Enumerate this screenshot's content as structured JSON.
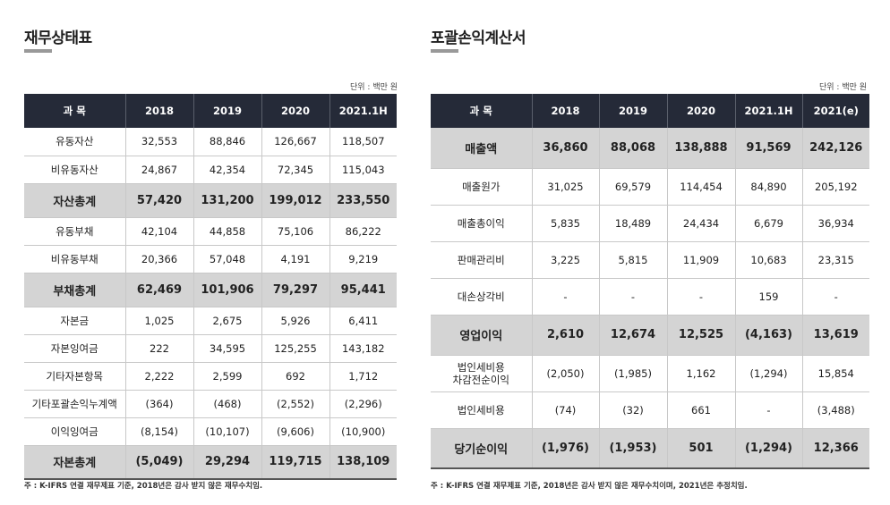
{
  "left": {
    "title": "재무상태표",
    "unit": "단위 : 백만 원",
    "headers": [
      "과  목",
      "2018",
      "2019",
      "2020",
      "2021.1H"
    ],
    "rows": [
      {
        "label": "유동자산",
        "values": [
          "32,553",
          "88,846",
          "126,667",
          "118,507"
        ],
        "total": false
      },
      {
        "label": "비유동자산",
        "values": [
          "24,867",
          "42,354",
          "72,345",
          "115,043"
        ],
        "total": false
      },
      {
        "label": "자산총계",
        "values": [
          "57,420",
          "131,200",
          "199,012",
          "233,550"
        ],
        "total": true
      },
      {
        "label": "유동부채",
        "values": [
          "42,104",
          "44,858",
          "75,106",
          "86,222"
        ],
        "total": false
      },
      {
        "label": "비유동부채",
        "values": [
          "20,366",
          "57,048",
          "4,191",
          "9,219"
        ],
        "total": false
      },
      {
        "label": "부채총계",
        "values": [
          "62,469",
          "101,906",
          "79,297",
          "95,441"
        ],
        "total": true
      },
      {
        "label": "자본금",
        "values": [
          "1,025",
          "2,675",
          "5,926",
          "6,411"
        ],
        "total": false
      },
      {
        "label": "자본잉여금",
        "values": [
          "222",
          "34,595",
          "125,255",
          "143,182"
        ],
        "total": false
      },
      {
        "label": "기타자본항목",
        "values": [
          "2,222",
          "2,599",
          "692",
          "1,712"
        ],
        "total": false
      },
      {
        "label": "기타포괄손익누계액",
        "values": [
          "(364)",
          "(468)",
          "(2,552)",
          "(2,296)"
        ],
        "total": false
      },
      {
        "label": "이익잉여금",
        "values": [
          "(8,154)",
          "(10,107)",
          "(9,606)",
          "(10,900)"
        ],
        "total": false
      },
      {
        "label": "자본총계",
        "values": [
          "(5,049)",
          "29,294",
          "119,715",
          "138,109"
        ],
        "total": true
      }
    ],
    "note": "주 : K-IFRS 연결 재무제표 기준, 2018년은 감사 받지 않은 재무수치임."
  },
  "right": {
    "title": "포괄손익계산서",
    "unit": "단위 : 백만 원",
    "headers": [
      "과  목",
      "2018",
      "2019",
      "2020",
      "2021.1H",
      "2021(e)"
    ],
    "rows": [
      {
        "label": "매출액",
        "values": [
          "36,860",
          "88,068",
          "138,888",
          "91,569",
          "242,126"
        ],
        "total": true
      },
      {
        "label": "매출원가",
        "values": [
          "31,025",
          "69,579",
          "114,454",
          "84,890",
          "205,192"
        ],
        "total": false
      },
      {
        "label": "매출총이익",
        "values": [
          "5,835",
          "18,489",
          "24,434",
          "6,679",
          "36,934"
        ],
        "total": false
      },
      {
        "label": "판매관리비",
        "values": [
          "3,225",
          "5,815",
          "11,909",
          "10,683",
          "23,315"
        ],
        "total": false
      },
      {
        "label": "대손상각비",
        "values": [
          "-",
          "-",
          "-",
          "159",
          "-"
        ],
        "total": false
      },
      {
        "label": "영업이익",
        "values": [
          "2,610",
          "12,674",
          "12,525",
          "(4,163)",
          "13,619"
        ],
        "total": true
      },
      {
        "label": "법인세비용\n차감전순이익",
        "values": [
          "(2,050)",
          "(1,985)",
          "1,162",
          "(1,294)",
          "15,854"
        ],
        "total": false
      },
      {
        "label": "법인세비용",
        "values": [
          "(74)",
          "(32)",
          "661",
          "-",
          "(3,488)"
        ],
        "total": false
      },
      {
        "label": "당기순이익",
        "values": [
          "(1,976)",
          "(1,953)",
          "501",
          "(1,294)",
          "12,366"
        ],
        "total": true
      }
    ],
    "note": "주 : K-IFRS 연결 재무제표 기준, 2018년은 감사 받지 않은 재무수치이며, 2021년은 추정치임."
  }
}
